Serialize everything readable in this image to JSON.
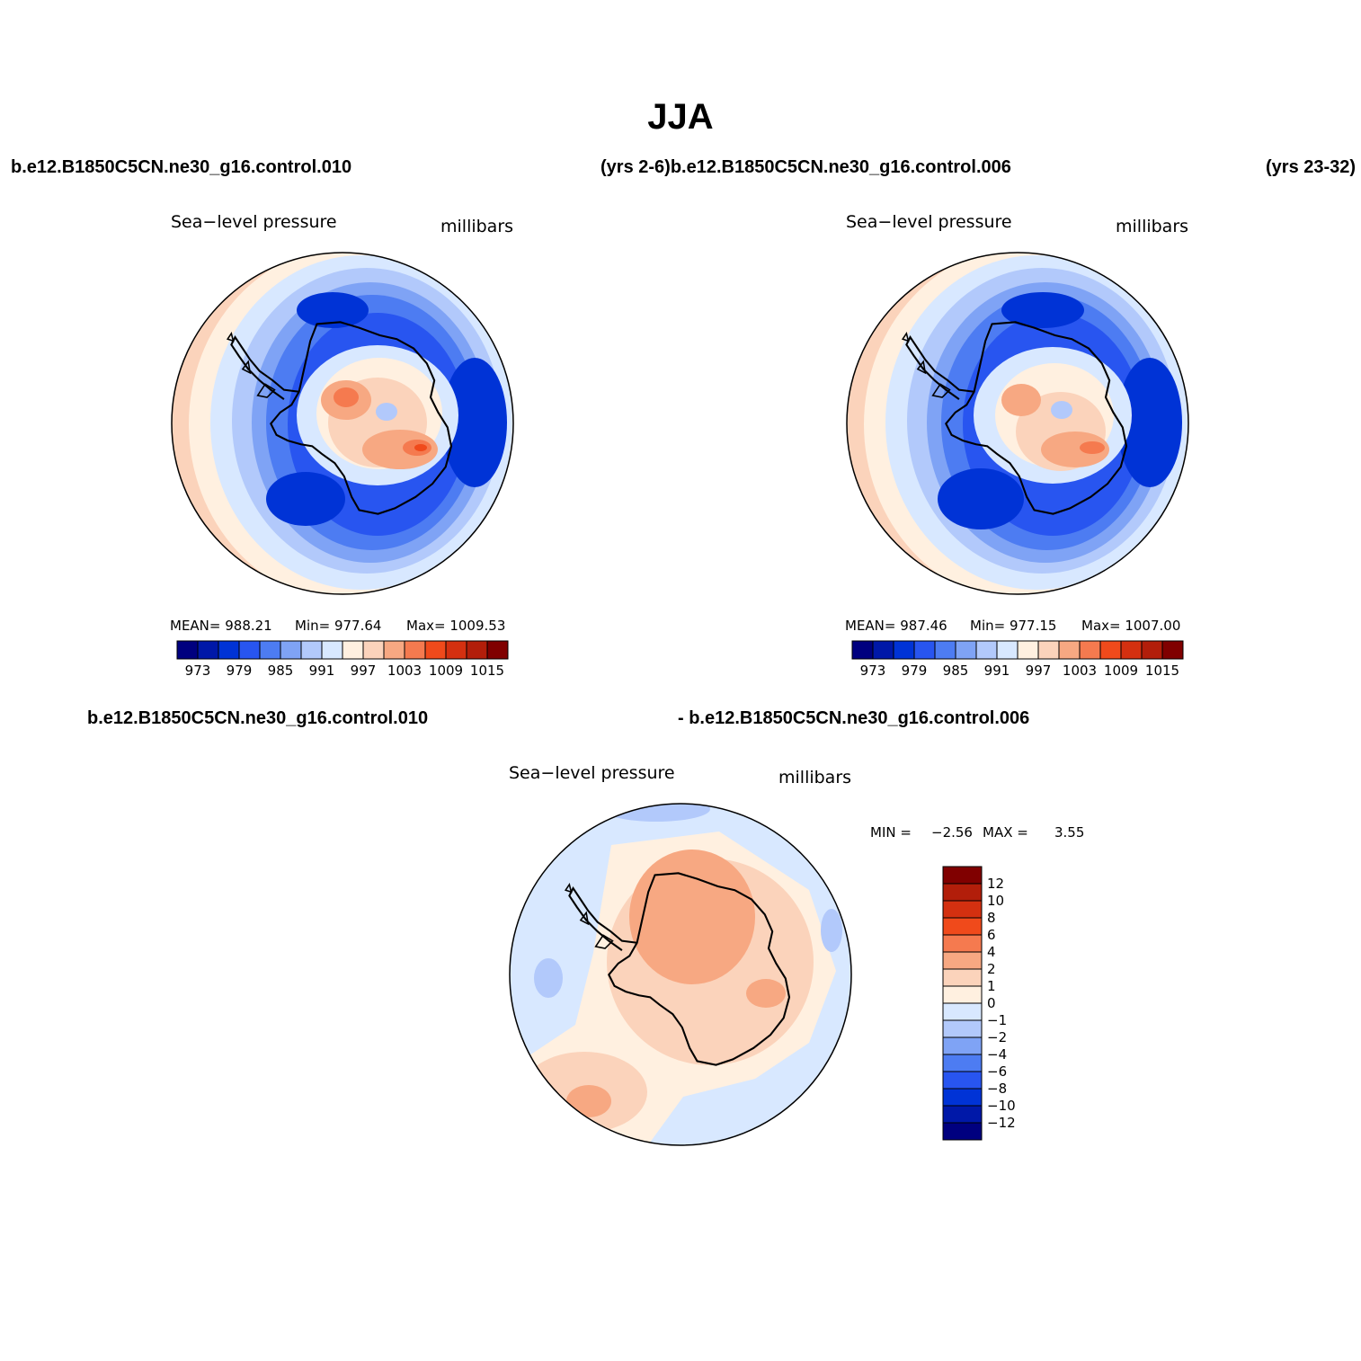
{
  "title": "JJA",
  "header_lines": {
    "top_left": "b.e12.B1850C5CN.ne30_g16.control.010",
    "top_middle": "(yrs 2-6)b.e12.B1850C5CN.ne30_g16.control.006",
    "top_right": "(yrs 23-32)",
    "diff_left": "b.e12.B1850C5CN.ne30_g16.control.010",
    "diff_right": "- b.e12.B1850C5CN.ne30_g16.control.006"
  },
  "panels": [
    {
      "id": "case1",
      "field_label": "Sea−level pressure",
      "units_label": "millibars",
      "stats": {
        "mean_label": "MEAN= 988.21",
        "min_label": "Min= 977.64",
        "max_label": "Max= 1009.53"
      }
    },
    {
      "id": "case2",
      "field_label": "Sea−level pressure",
      "units_label": "millibars",
      "stats": {
        "mean_label": "MEAN= 987.46",
        "min_label": "Min= 977.15",
        "max_label": "Max= 1007.00"
      }
    },
    {
      "id": "difference",
      "field_label": "Sea−level pressure",
      "units_label": "millibars",
      "stats": {
        "min_label": "MIN =",
        "min_value": "−2.56",
        "max_label": "MAX =",
        "max_value": "3.55"
      }
    }
  ],
  "colorbar_abs": {
    "colors": [
      "#00007f",
      "#0018a8",
      "#0033d6",
      "#2855f0",
      "#4d7cf2",
      "#7fa3f5",
      "#b2c9fb",
      "#d8e8ff",
      "#fff0e0",
      "#fbd3bb",
      "#f7a882",
      "#f57a4f",
      "#f04a1b",
      "#d43010",
      "#b21e0a",
      "#800000"
    ],
    "tick_labels": [
      "973",
      "979",
      "985",
      "991",
      "997",
      "1003",
      "1009",
      "1015"
    ]
  },
  "colorbar_diff": {
    "colors_top_to_bottom": [
      "#800000",
      "#b21e0a",
      "#d43010",
      "#f04a1b",
      "#f57a4f",
      "#f7a882",
      "#fbd3bb",
      "#fff0e0",
      "#d8e8ff",
      "#b2c9fb",
      "#7fa3f5",
      "#4d7cf2",
      "#2855f0",
      "#0033d6",
      "#0018a8",
      "#00007f"
    ],
    "tick_labels": [
      "12",
      "10",
      "8",
      "6",
      "4",
      "2",
      "1",
      "0",
      "−1",
      "−2",
      "−4",
      "−6",
      "−8",
      "−10",
      "−12"
    ]
  }
}
